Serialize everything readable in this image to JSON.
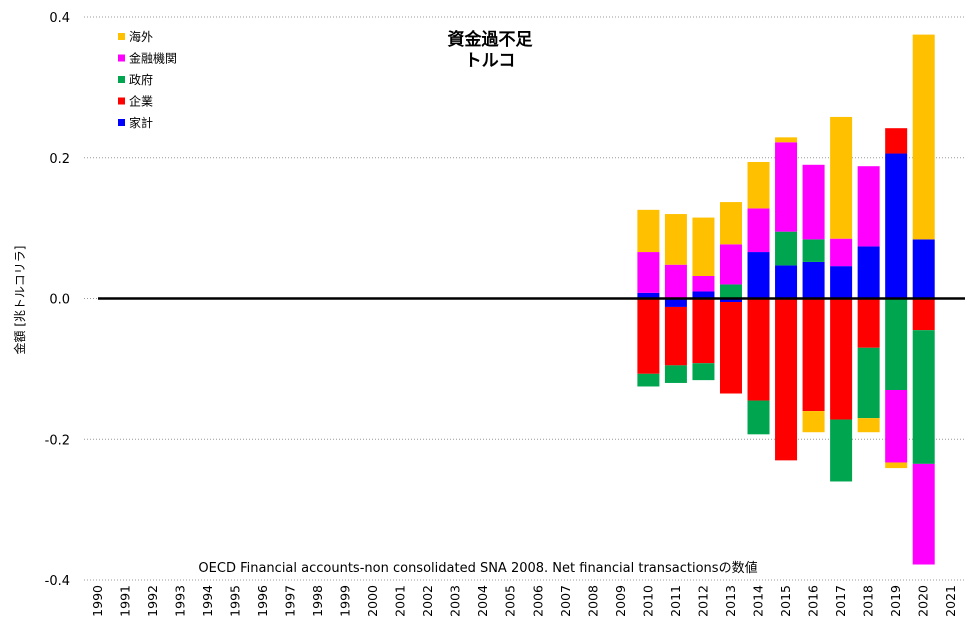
{
  "chart_data": {
    "type": "bar",
    "stacked": true,
    "title": [
      "資金過不足",
      "トルコ"
    ],
    "ylabel": "金額 [兆トルコリラ]",
    "ylim": [
      -0.4,
      0.4
    ],
    "yticks": [
      0.4,
      0.2,
      0.0,
      -0.2,
      -0.4
    ],
    "ytick_labels": [
      "0.4",
      "0.2",
      "0.0",
      "-0.2",
      "-0.4"
    ],
    "grid": "horizontal dotted",
    "legend_position": "top-left",
    "source_note": "OECD Financial accounts-non consolidated SNA 2008. Net financial transactionsの数値",
    "categories": [
      "1990",
      "1991",
      "1992",
      "1993",
      "1994",
      "1995",
      "1996",
      "1997",
      "1998",
      "1999",
      "2000",
      "2001",
      "2002",
      "2003",
      "2004",
      "2005",
      "2006",
      "2007",
      "2008",
      "2009",
      "2010",
      "2011",
      "2012",
      "2013",
      "2014",
      "2015",
      "2016",
      "2017",
      "2018",
      "2019",
      "2020",
      "2021"
    ],
    "series": [
      {
        "name": "家計",
        "color": "#0000ff",
        "values": [
          null,
          null,
          null,
          null,
          null,
          null,
          null,
          null,
          null,
          null,
          null,
          null,
          null,
          null,
          null,
          null,
          null,
          null,
          null,
          null,
          0.008,
          -0.012,
          0.01,
          -0.005,
          0.066,
          0.047,
          0.052,
          0.046,
          0.074,
          0.206,
          0.084,
          null
        ]
      },
      {
        "name": "企業",
        "color": "#ff0000",
        "values": [
          null,
          null,
          null,
          null,
          null,
          null,
          null,
          null,
          null,
          null,
          null,
          null,
          null,
          null,
          null,
          null,
          null,
          null,
          null,
          null,
          -0.107,
          -0.083,
          -0.092,
          -0.13,
          -0.145,
          -0.23,
          -0.16,
          -0.172,
          -0.07,
          0.036,
          -0.045,
          null
        ]
      },
      {
        "name": "政府",
        "color": "#00a550",
        "values": [
          null,
          null,
          null,
          null,
          null,
          null,
          null,
          null,
          null,
          null,
          null,
          null,
          null,
          null,
          null,
          null,
          null,
          null,
          null,
          null,
          -0.018,
          -0.025,
          -0.024,
          0.02,
          -0.048,
          0.048,
          0.032,
          -0.088,
          -0.1,
          -0.13,
          -0.19,
          null
        ]
      },
      {
        "name": "金融機関",
        "color": "#ff00ff",
        "values": [
          null,
          null,
          null,
          null,
          null,
          null,
          null,
          null,
          null,
          null,
          null,
          null,
          null,
          null,
          null,
          null,
          null,
          null,
          null,
          null,
          0.058,
          0.048,
          0.022,
          0.057,
          0.062,
          0.127,
          0.106,
          0.039,
          0.114,
          -0.103,
          -0.143,
          null
        ]
      },
      {
        "name": "海外",
        "color": "#ffc000",
        "values": [
          null,
          null,
          null,
          null,
          null,
          null,
          null,
          null,
          null,
          null,
          null,
          null,
          null,
          null,
          null,
          null,
          null,
          null,
          null,
          null,
          0.06,
          0.072,
          0.083,
          0.06,
          0.066,
          0.007,
          -0.03,
          0.173,
          -0.02,
          -0.008,
          0.291,
          null
        ]
      }
    ]
  }
}
